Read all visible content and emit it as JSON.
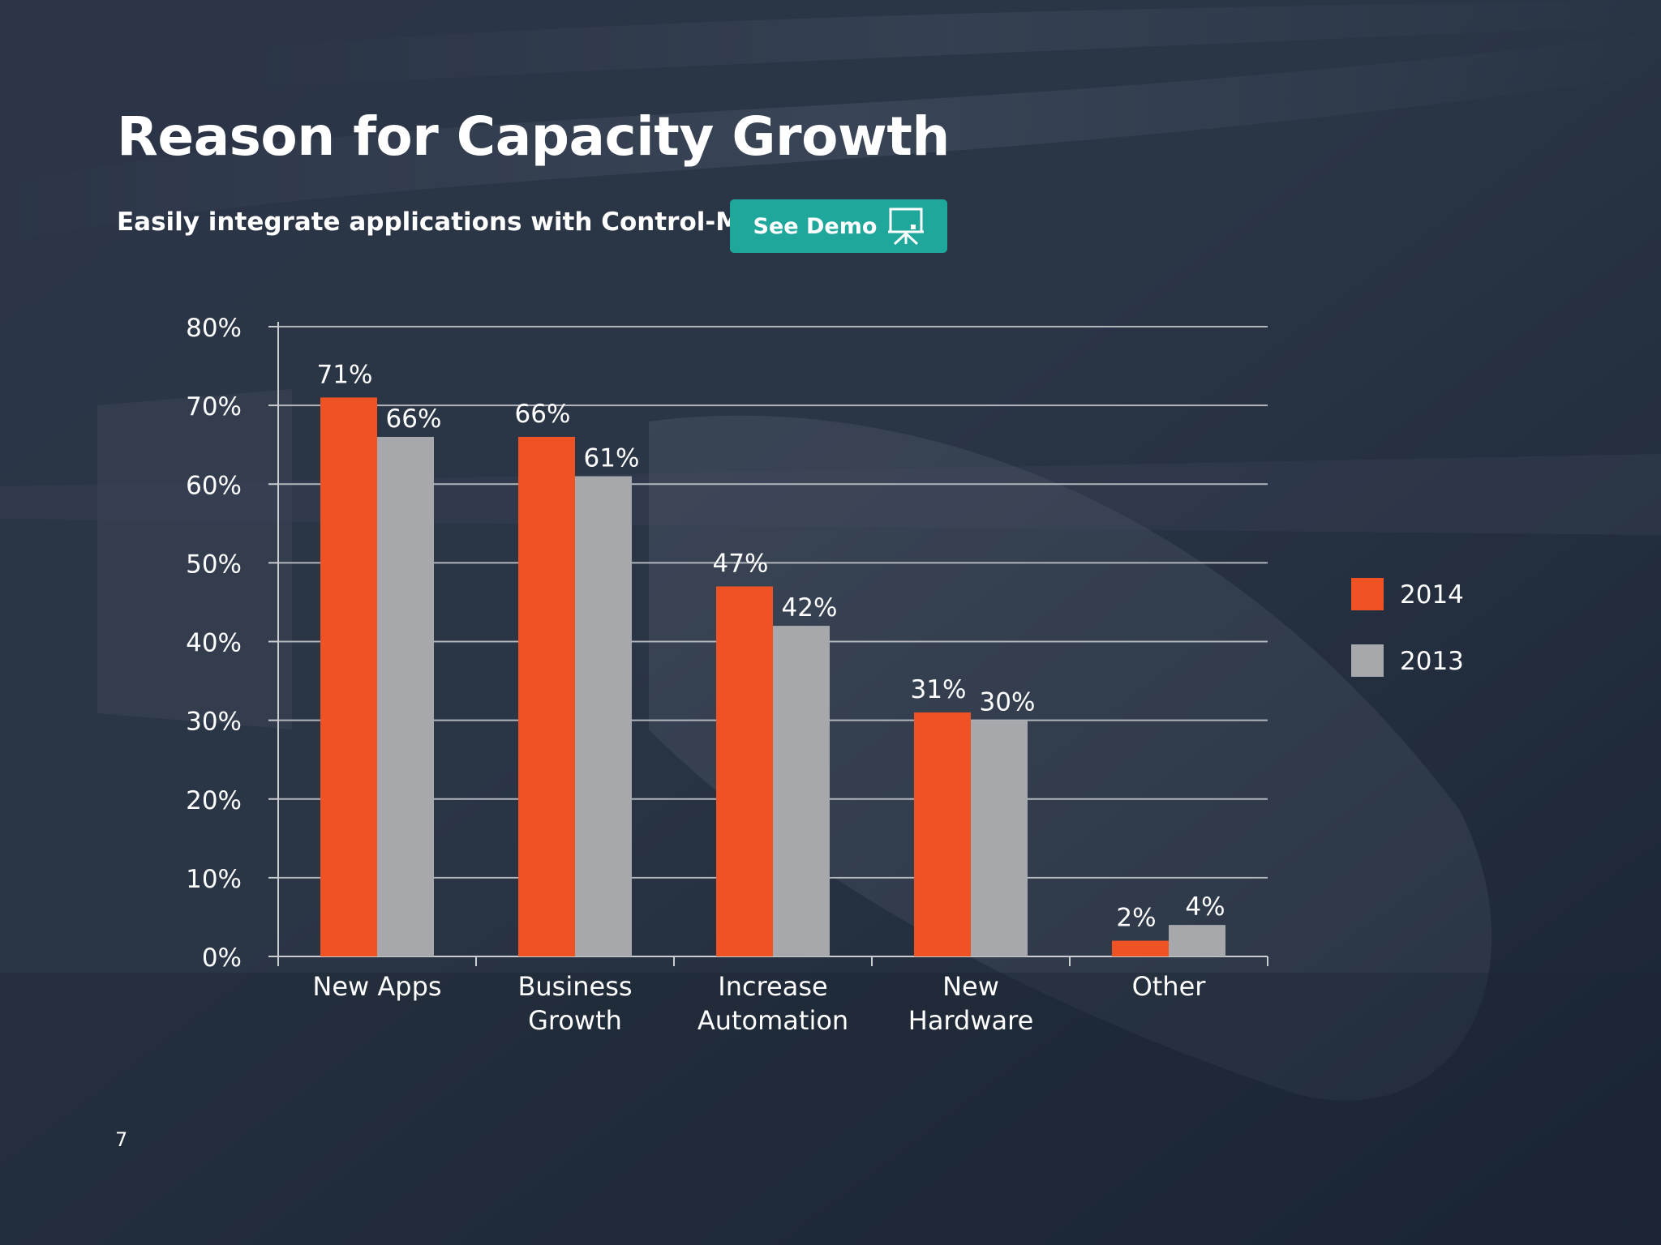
{
  "slide": {
    "title": "Reason for Capacity Growth",
    "subtitle": "Easily integrate applications with Control-M.",
    "demo_button_label": "See Demo",
    "demo_button_icon": "presentation-board-icon",
    "page_number": "7",
    "colors": {
      "accent_2014": "#f05323",
      "accent_2013": "#a7a8ab",
      "button": "#1fa79b"
    }
  },
  "chart_data": {
    "type": "bar",
    "categories": [
      "New Apps",
      "Business Growth",
      "Increase Automation",
      "New Hardware",
      "Other"
    ],
    "category_lines": [
      [
        "New Apps"
      ],
      [
        "Business",
        "Growth"
      ],
      [
        "Increase",
        "Automation"
      ],
      [
        "New",
        "Hardware"
      ],
      [
        "Other"
      ]
    ],
    "series": [
      {
        "name": "2014",
        "values": [
          71,
          66,
          47,
          31,
          2
        ],
        "color": "#f05323"
      },
      {
        "name": "2013",
        "values": [
          66,
          61,
          42,
          30,
          4
        ],
        "color": "#a7a8ab"
      }
    ],
    "data_labels": [
      [
        "71%",
        "66%",
        "47%",
        "31%",
        "2%"
      ],
      [
        "66%",
        "61%",
        "42%",
        "30%",
        "4%"
      ]
    ],
    "ylim": [
      0,
      80
    ],
    "y_ticks": [
      0,
      10,
      20,
      30,
      40,
      50,
      60,
      70,
      80
    ],
    "y_tick_labels": [
      "0%",
      "10%",
      "20%",
      "30%",
      "40%",
      "50%",
      "60%",
      "70%",
      "80%"
    ],
    "grid": true,
    "legend_position": "right"
  }
}
